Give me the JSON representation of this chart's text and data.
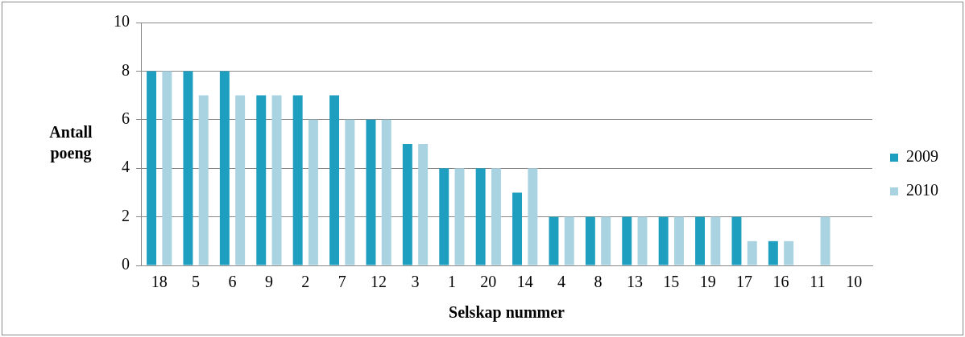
{
  "chart_data": {
    "type": "bar",
    "xlabel": "Selskap nummer",
    "ylabel": "Antall poeng",
    "categories": [
      "18",
      "5",
      "6",
      "9",
      "2",
      "7",
      "12",
      "3",
      "1",
      "20",
      "14",
      "4",
      "8",
      "13",
      "15",
      "19",
      "17",
      "16",
      "11",
      "10"
    ],
    "series": [
      {
        "name": "2009",
        "color": "#1f9fbf",
        "values": [
          8,
          8,
          8,
          7,
          7,
          7,
          6,
          5,
          4,
          4,
          3,
          2,
          2,
          2,
          2,
          2,
          2,
          1,
          0,
          0
        ]
      },
      {
        "name": "2010",
        "color": "#a9d3e0",
        "values": [
          8,
          7,
          7,
          7,
          6,
          6,
          6,
          5,
          4,
          4,
          4,
          2,
          2,
          2,
          2,
          2,
          1,
          1,
          2,
          0
        ]
      }
    ],
    "ylim": [
      0,
      10
    ],
    "yticks": [
      0,
      2,
      4,
      6,
      8,
      10
    ],
    "grid": "y",
    "legend": "right"
  }
}
